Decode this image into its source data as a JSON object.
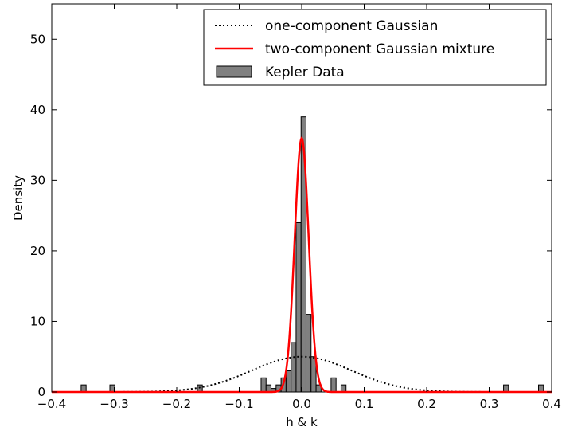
{
  "chart_data": {
    "type": "bar",
    "xlabel": "h & k",
    "ylabel": "Density",
    "xlim": [
      -0.4,
      0.4
    ],
    "ylim": [
      0,
      55
    ],
    "xticks": [
      "−0.4",
      "−0.3",
      "−0.2",
      "−0.1",
      "0.0",
      "0.1",
      "0.2",
      "0.3",
      "0.4"
    ],
    "yticks": [
      "0",
      "10",
      "20",
      "30",
      "40",
      "50"
    ],
    "grid": false,
    "legend_position": "top-right",
    "series": [
      {
        "name": "Kepler Data",
        "kind": "histogram",
        "color": "#808080",
        "bin_width": 0.008,
        "x": [
          -0.349,
          -0.303,
          -0.163,
          -0.061,
          -0.053,
          -0.045,
          -0.037,
          -0.029,
          -0.021,
          -0.013,
          -0.005,
          0.003,
          0.011,
          0.019,
          0.027,
          0.051,
          0.067,
          0.327,
          0.383
        ],
        "values": [
          1,
          1,
          1,
          2,
          1,
          0.5,
          1,
          2,
          3,
          7,
          24,
          39,
          11,
          5,
          1,
          2,
          1,
          1,
          1
        ]
      },
      {
        "name": "one-component Gaussian",
        "kind": "curve",
        "color": "#000000",
        "style": "dotted",
        "mean": 0.0,
        "peak": 5.0,
        "sigma": 0.08
      },
      {
        "name": "two-component Gaussian mixture",
        "kind": "curve",
        "color": "#ff0000",
        "style": "solid",
        "mean": 0.0,
        "peak": 36.0,
        "sigma": 0.0112
      }
    ]
  }
}
